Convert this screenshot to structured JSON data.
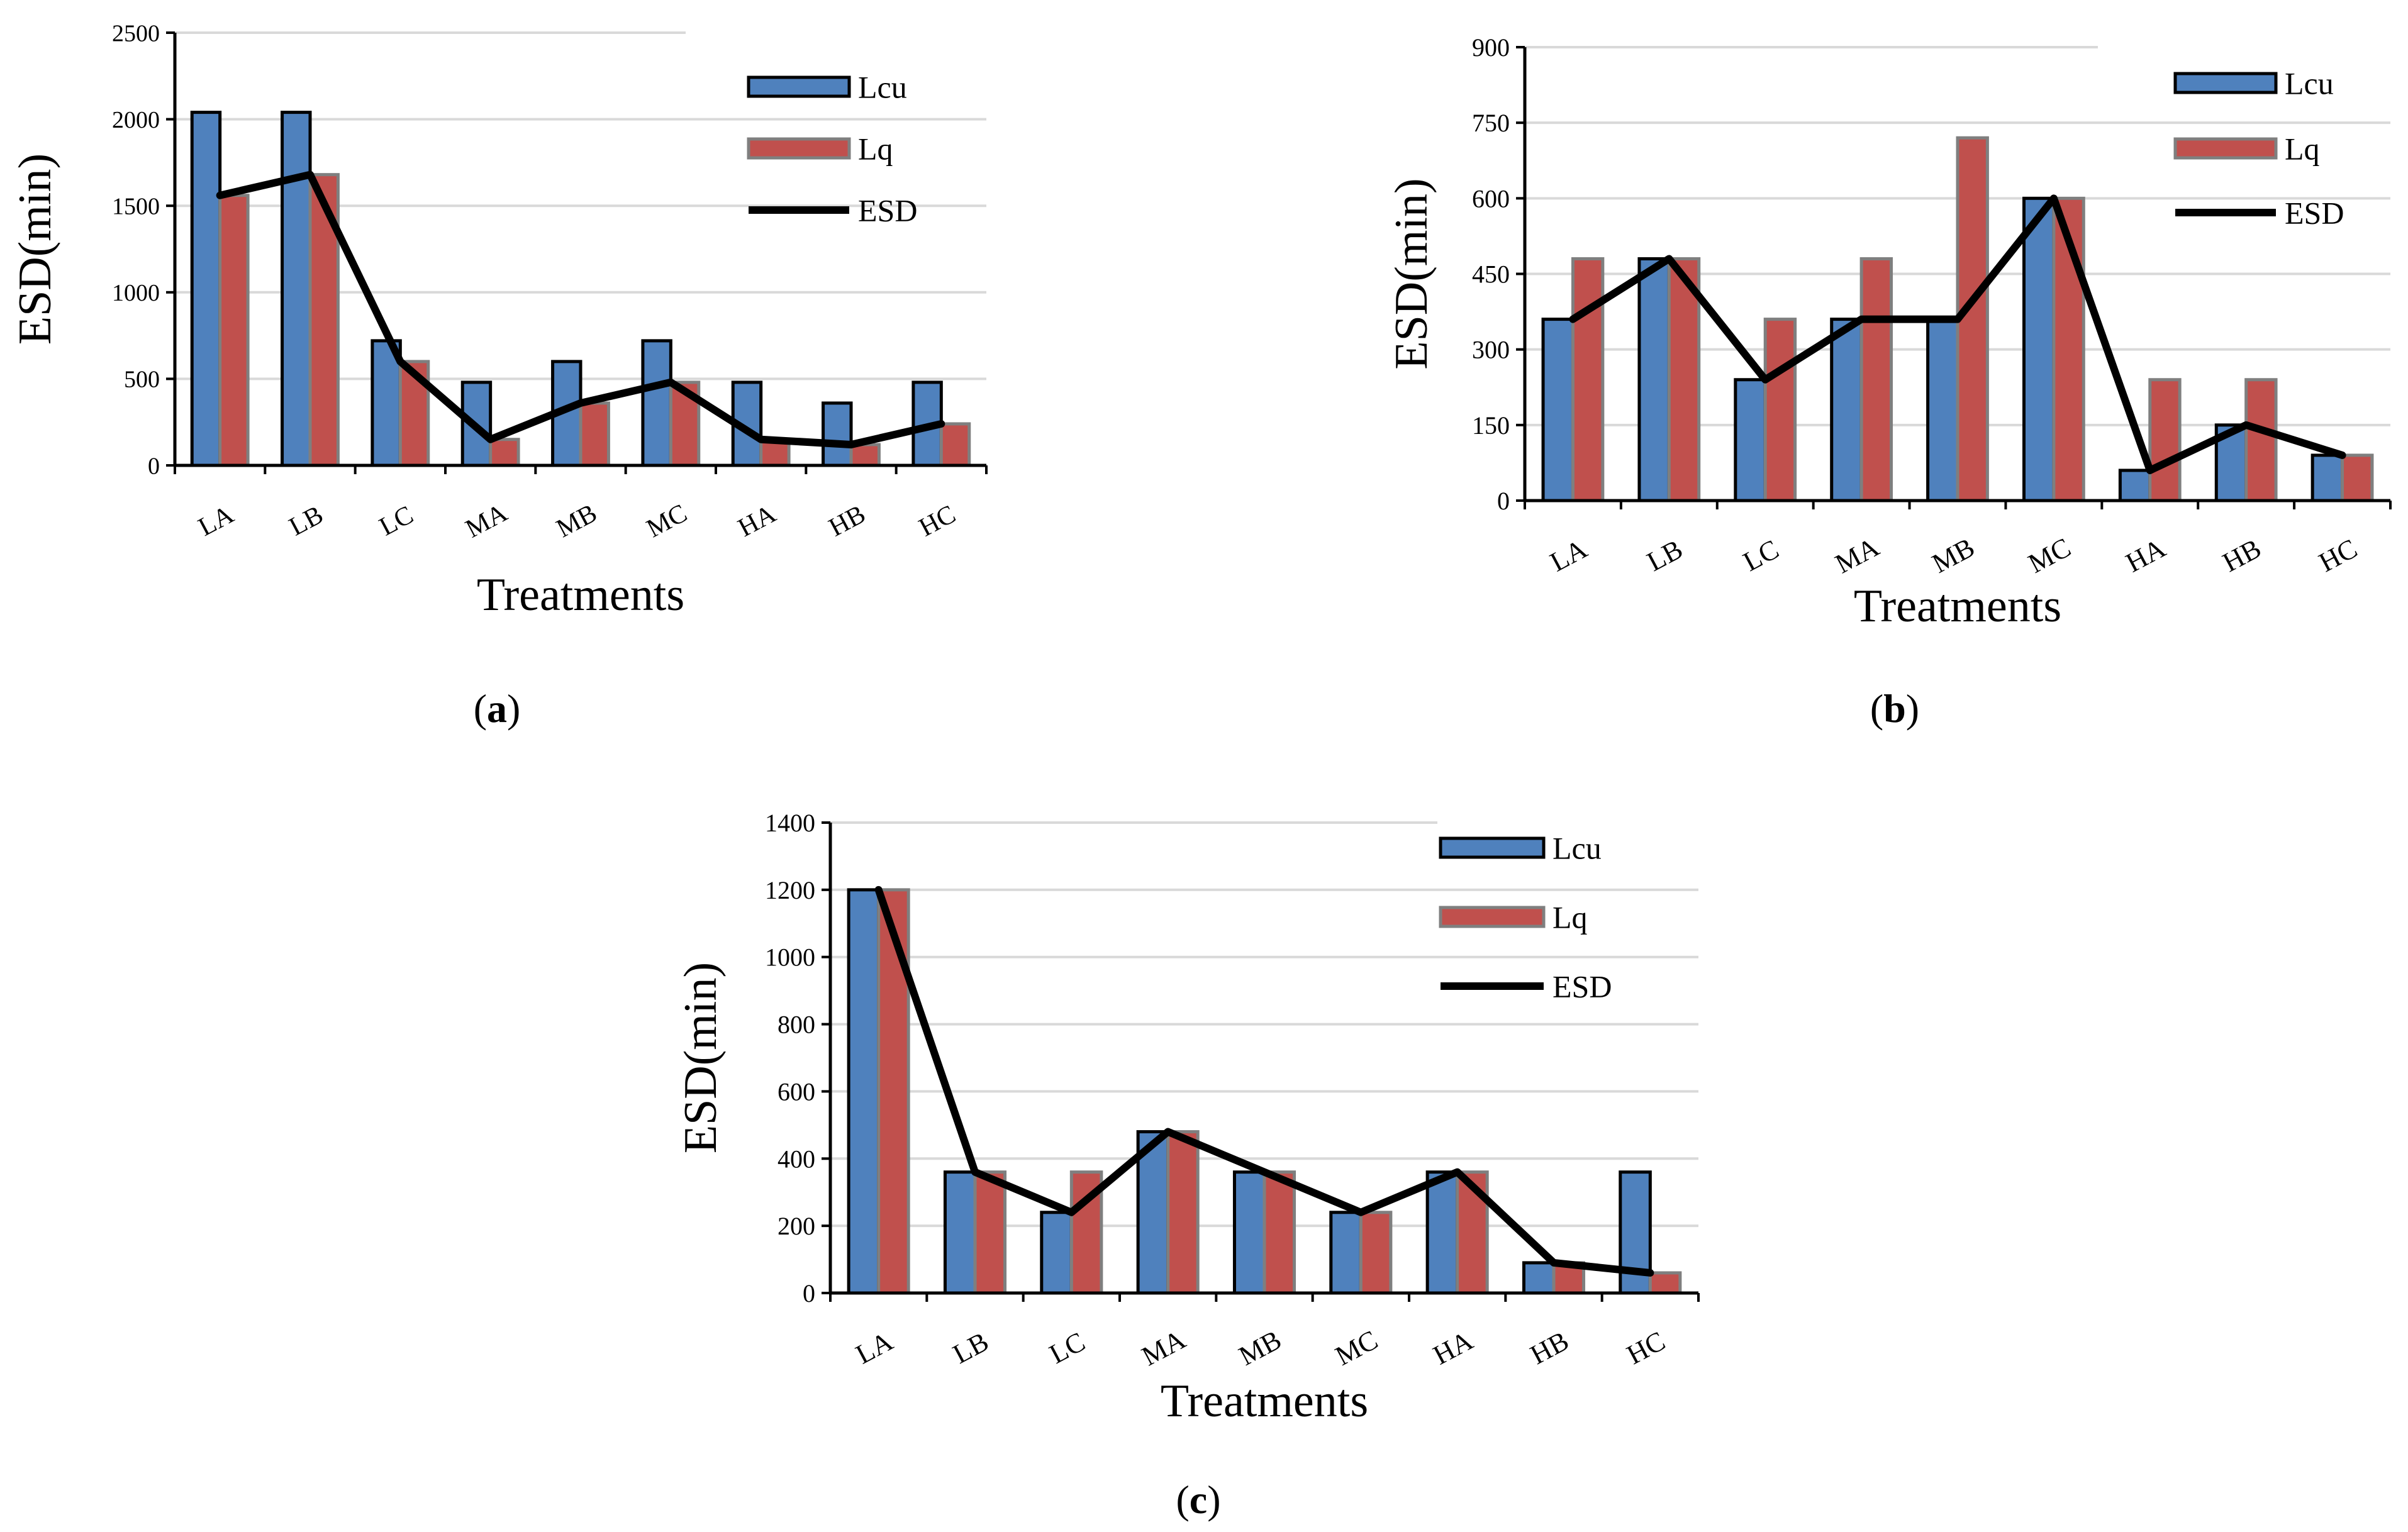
{
  "chart_data": [
    {
      "type": "bar",
      "panel": "a",
      "categories": [
        "LA",
        "LB",
        "LC",
        "MA",
        "MB",
        "MC",
        "HA",
        "HB",
        "HC"
      ],
      "series": [
        {
          "name": "Lcu",
          "kind": "bar",
          "color": "#4F81BD",
          "values": [
            2040,
            2040,
            720,
            480,
            600,
            720,
            480,
            360,
            480
          ]
        },
        {
          "name": "Lq",
          "kind": "bar",
          "color": "#C0504D",
          "values": [
            1560,
            1680,
            600,
            150,
            360,
            480,
            150,
            120,
            240
          ]
        },
        {
          "name": "ESD",
          "kind": "line",
          "color": "#000000",
          "values": [
            1560,
            1680,
            600,
            150,
            360,
            480,
            150,
            120,
            240
          ]
        }
      ],
      "xlabel": "Treatments",
      "ylabel": "ESD(min)",
      "ylim": [
        0,
        2500
      ],
      "yticks": [
        "0",
        "500",
        "1000",
        "1500",
        "2000",
        "2500"
      ],
      "legend": "top-right"
    },
    {
      "type": "bar",
      "panel": "b",
      "categories": [
        "LA",
        "LB",
        "LC",
        "MA",
        "MB",
        "MC",
        "HA",
        "HB",
        "HC"
      ],
      "series": [
        {
          "name": "Lcu",
          "kind": "bar",
          "color": "#4F81BD",
          "values": [
            360,
            480,
            240,
            360,
            360,
            600,
            60,
            150,
            90
          ]
        },
        {
          "name": "Lq",
          "kind": "bar",
          "color": "#C0504D",
          "values": [
            480,
            480,
            360,
            480,
            720,
            600,
            240,
            240,
            90
          ]
        },
        {
          "name": "ESD",
          "kind": "line",
          "color": "#000000",
          "values": [
            360,
            480,
            240,
            360,
            360,
            600,
            60,
            150,
            90
          ]
        }
      ],
      "xlabel": "Treatments",
      "ylabel": "ESD(min)",
      "ylim": [
        0,
        900
      ],
      "yticks": [
        "0",
        "150",
        "300",
        "450",
        "600",
        "750",
        "900"
      ],
      "legend": "top-right"
    },
    {
      "type": "bar",
      "panel": "c",
      "categories": [
        "LA",
        "LB",
        "LC",
        "MA",
        "MB",
        "MC",
        "HA",
        "HB",
        "HC"
      ],
      "series": [
        {
          "name": "Lcu",
          "kind": "bar",
          "color": "#4F81BD",
          "values": [
            1200,
            360,
            240,
            480,
            360,
            240,
            360,
            90,
            360
          ]
        },
        {
          "name": "Lq",
          "kind": "bar",
          "color": "#C0504D",
          "values": [
            1200,
            360,
            360,
            480,
            360,
            240,
            360,
            90,
            60
          ]
        },
        {
          "name": "ESD",
          "kind": "line",
          "color": "#000000",
          "values": [
            1200,
            360,
            240,
            480,
            360,
            240,
            360,
            90,
            60
          ]
        }
      ],
      "xlabel": "Treatments",
      "ylabel": "ESD(min)",
      "ylim": [
        0,
        1400
      ],
      "yticks": [
        "0",
        "200",
        "400",
        "600",
        "800",
        "1000",
        "1200",
        "1400"
      ],
      "legend": "top-right"
    }
  ],
  "panel_labels": {
    "a": "a",
    "b": "b",
    "c": "c"
  }
}
